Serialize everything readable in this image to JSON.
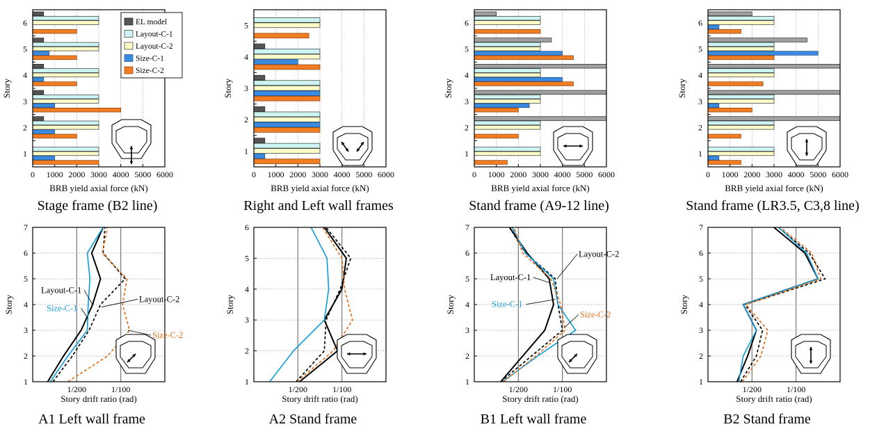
{
  "colors": {
    "el_model": "#555555",
    "el_model_light": "#a0a0a0",
    "layout_c1": "#cdf3f3",
    "layout_c2": "#fbfbc8",
    "size_c1": "#3a8be0",
    "size_c2": "#f07d22",
    "drift_layout_c1": "#000000",
    "drift_layout_c2": "#000000",
    "drift_size_c1": "#1a9ed8",
    "drift_size_c2": "#e0701e"
  },
  "chart_data": [
    {
      "type": "bar",
      "orientation": "horizontal",
      "caption": "Stage frame (B2 line)",
      "xlabel": "BRB yield axial force (kN)",
      "ylabel": "Story",
      "xlim": [
        0,
        6000
      ],
      "xticks": [
        "0",
        "1000",
        "2000",
        "3000",
        "4000",
        "5000",
        "6000"
      ],
      "categories": [
        "1",
        "2",
        "3",
        "4",
        "5",
        "6"
      ],
      "legend": [
        "EL model",
        "Layout-C-1",
        "Layout-C-2",
        "Size-C-1",
        "Size-C-2"
      ],
      "legend_placement": "top-right",
      "icon": "stage-frame-vertical-arrow-icon",
      "series": [
        {
          "name": "EL model",
          "values": [
            0,
            500,
            500,
            500,
            500,
            500
          ]
        },
        {
          "name": "Layout-C-1",
          "values": [
            3000,
            3000,
            3000,
            3000,
            3000,
            3000
          ]
        },
        {
          "name": "Layout-C-2",
          "values": [
            3000,
            3000,
            3000,
            3000,
            3000,
            3000
          ]
        },
        {
          "name": "Size-C-1",
          "values": [
            1000,
            1000,
            1000,
            500,
            750,
            0
          ]
        },
        {
          "name": "Size-C-2",
          "values": [
            3000,
            2000,
            4000,
            2000,
            2000,
            2000
          ]
        }
      ]
    },
    {
      "type": "bar",
      "orientation": "horizontal",
      "caption": "Right and Left wall frames",
      "xlabel": "BRB yield axial force (kN)",
      "ylabel": "Story",
      "xlim": [
        0,
        6000
      ],
      "xticks": [
        "0",
        "1000",
        "2000",
        "3000",
        "4000",
        "5000",
        "6000"
      ],
      "categories": [
        "1",
        "2",
        "3",
        "4",
        "5"
      ],
      "icon": "wall-frames-diagonal-arrows-icon",
      "series": [
        {
          "name": "EL model",
          "values": [
            500,
            500,
            500,
            500,
            0
          ]
        },
        {
          "name": "Layout-C-1",
          "values": [
            3000,
            3000,
            3000,
            3000,
            3000
          ]
        },
        {
          "name": "Layout-C-2",
          "values": [
            3000,
            3000,
            3000,
            3000,
            3000
          ]
        },
        {
          "name": "Size-C-1",
          "values": [
            500,
            3000,
            3000,
            2000,
            0
          ]
        },
        {
          "name": "Size-C-2",
          "values": [
            3000,
            3000,
            3000,
            3000,
            2500
          ]
        }
      ]
    },
    {
      "type": "bar",
      "orientation": "horizontal",
      "caption": "Stand frame (A9-12 line)",
      "xlabel": "BRB yield axial force (kN)",
      "ylabel": "Story",
      "xlim": [
        0,
        6000
      ],
      "xticks": [
        "0",
        "1000",
        "2000",
        "3000",
        "4000",
        "5000",
        "6000"
      ],
      "categories": [
        "1",
        "2",
        "3",
        "4",
        "5",
        "6"
      ],
      "icon": "stand-frame-horizontal-arrow-icon",
      "series": [
        {
          "name": "EL model",
          "values": [
            0,
            6000,
            6000,
            6000,
            3500,
            1000
          ]
        },
        {
          "name": "Layout-C-1",
          "values": [
            3000,
            3000,
            3000,
            3000,
            3000,
            3000
          ]
        },
        {
          "name": "Layout-C-2",
          "values": [
            3000,
            3000,
            3000,
            3000,
            3000,
            3000
          ]
        },
        {
          "name": "Size-C-1",
          "values": [
            0,
            0,
            2500,
            4000,
            4000,
            0
          ]
        },
        {
          "name": "Size-C-2",
          "values": [
            1500,
            2000,
            2000,
            4500,
            4500,
            3000
          ]
        }
      ]
    },
    {
      "type": "bar",
      "orientation": "horizontal",
      "caption": "Stand frame (LR3.5, C3,8 line)",
      "xlabel": "BRB yield axial force (kN)",
      "ylabel": "Story",
      "xlim": [
        0,
        6000
      ],
      "xticks": [
        "0",
        "1000",
        "2000",
        "3000",
        "4000",
        "5000",
        "6000"
      ],
      "categories": [
        "1",
        "2",
        "3",
        "4",
        "5",
        "6"
      ],
      "icon": "stand-frame-vertical-arrow-icon",
      "series": [
        {
          "name": "EL model",
          "values": [
            0,
            6000,
            6000,
            6000,
            4500,
            2000
          ]
        },
        {
          "name": "Layout-C-1",
          "values": [
            3000,
            3000,
            3000,
            3000,
            3000,
            3000
          ]
        },
        {
          "name": "Layout-C-2",
          "values": [
            3000,
            3000,
            3000,
            3000,
            3000,
            3000
          ]
        },
        {
          "name": "Size-C-1",
          "values": [
            500,
            0,
            500,
            0,
            5000,
            500
          ]
        },
        {
          "name": "Size-C-2",
          "values": [
            1500,
            1500,
            2000,
            2500,
            3000,
            1500
          ]
        }
      ]
    },
    {
      "type": "line",
      "caption": "A1 Left wall frame",
      "xlabel": "Story drift ratio (rad)",
      "ylabel": "Story",
      "xlim": [
        0,
        0.015
      ],
      "ylim": [
        1,
        7
      ],
      "xticks": [
        {
          "value": 0.005,
          "label": "1/200"
        },
        {
          "value": 0.01,
          "label": "1/100"
        }
      ],
      "yticks": [
        "1",
        "2",
        "3",
        "4",
        "5",
        "6",
        "7"
      ],
      "icon": "left-wall-diagonal-arrow-icon",
      "series": [
        {
          "name": "Layout-C-1",
          "style": "solid",
          "x": [
            0.0017,
            0.0035,
            0.0055,
            0.0068,
            0.0077,
            0.0067,
            0.008
          ],
          "y": [
            1,
            2,
            3,
            4,
            5,
            6,
            7
          ]
        },
        {
          "name": "Layout-C-2",
          "style": "dashed",
          "x": [
            0.0023,
            0.0045,
            0.0064,
            0.0077,
            0.0105,
            0.008,
            0.0082
          ],
          "y": [
            1,
            2,
            3,
            4,
            5,
            6,
            7
          ]
        },
        {
          "name": "Size-C-1",
          "style": "solid",
          "x": [
            0.002,
            0.004,
            0.0062,
            0.0063,
            0.0065,
            0.0062,
            0.008
          ],
          "y": [
            1,
            2,
            3,
            4,
            5,
            6,
            7
          ]
        },
        {
          "name": "Size-C-2",
          "style": "dashed",
          "x": [
            0.004,
            0.0085,
            0.011,
            0.0102,
            0.0107,
            0.0079,
            0.0085
          ],
          "y": [
            1,
            2,
            3,
            4,
            5,
            6,
            7
          ]
        }
      ],
      "annotations": [
        {
          "text": "Layout-C-1",
          "series": "Layout-C-1"
        },
        {
          "text": "Layout-C-2",
          "series": "Layout-C-2"
        },
        {
          "text": "Size-C-1",
          "series": "Size-C-1"
        },
        {
          "text": "Size-C-2",
          "series": "Size-C-2"
        }
      ]
    },
    {
      "type": "line",
      "caption": "A2 Stand frame",
      "xlabel": "Story drift ratio (rad)",
      "ylabel": "Story",
      "xlim": [
        0,
        0.015
      ],
      "ylim": [
        1,
        6
      ],
      "xticks": [
        {
          "value": 0.005,
          "label": "1/200"
        },
        {
          "value": 0.01,
          "label": "1/100"
        }
      ],
      "yticks": [
        "1",
        "2",
        "3",
        "4",
        "5",
        "6"
      ],
      "icon": "stand-frame-horizontal-arrow-icon",
      "series": [
        {
          "name": "Layout-C-1",
          "style": "solid",
          "x": [
            0.0052,
            0.0095,
            0.008,
            0.01,
            0.0105,
            0.008
          ],
          "y": [
            1,
            2,
            3,
            4,
            5,
            6
          ]
        },
        {
          "name": "Layout-C-2",
          "style": "dashed",
          "x": [
            0.0048,
            0.008,
            0.0082,
            0.0098,
            0.011,
            0.0082
          ],
          "y": [
            1,
            2,
            3,
            4,
            5,
            6
          ]
        },
        {
          "name": "Size-C-1",
          "style": "solid",
          "x": [
            0.0018,
            0.0045,
            0.008,
            0.0085,
            0.0083,
            0.0065
          ],
          "y": [
            1,
            2,
            3,
            4,
            5,
            6
          ]
        },
        {
          "name": "Size-C-2",
          "style": "dashed",
          "x": [
            0.0049,
            0.009,
            0.0112,
            0.0103,
            0.01,
            0.0078
          ],
          "y": [
            1,
            2,
            3,
            4,
            5,
            6
          ]
        }
      ]
    },
    {
      "type": "line",
      "caption": "B1 Left wall frame",
      "xlabel": "Story drift ratio (rad)",
      "ylabel": "Story",
      "xlim": [
        0,
        0.015
      ],
      "ylim": [
        1,
        7
      ],
      "xticks": [
        {
          "value": 0.005,
          "label": "1/200"
        },
        {
          "value": 0.01,
          "label": "1/100"
        }
      ],
      "yticks": [
        "1",
        "2",
        "3",
        "4",
        "5",
        "6",
        "7"
      ],
      "icon": "left-wall-diagonal-arrow-icon",
      "series": [
        {
          "name": "Layout-C-1",
          "style": "solid",
          "x": [
            0.003,
            0.0055,
            0.008,
            0.009,
            0.0085,
            0.006,
            0.004
          ],
          "y": [
            1,
            2,
            3,
            4,
            5,
            6,
            7
          ]
        },
        {
          "name": "Layout-C-2",
          "style": "dashed",
          "x": [
            0.003,
            0.0065,
            0.01,
            0.0095,
            0.0092,
            0.0058,
            0.004
          ],
          "y": [
            1,
            2,
            3,
            4,
            5,
            6,
            7
          ]
        },
        {
          "name": "Size-C-1",
          "style": "solid",
          "x": [
            0.0032,
            0.0072,
            0.0115,
            0.0095,
            0.009,
            0.0058,
            0.0043
          ],
          "y": [
            1,
            2,
            3,
            4,
            5,
            6,
            7
          ]
        },
        {
          "name": "Size-C-2",
          "style": "dashed",
          "x": [
            0.0033,
            0.007,
            0.0103,
            0.0098,
            0.0087,
            0.0055,
            0.0045
          ],
          "y": [
            1,
            2,
            3,
            4,
            5,
            6,
            7
          ]
        }
      ],
      "annotations": [
        {
          "text": "Layout-C-2",
          "series": "Layout-C-2"
        },
        {
          "text": "Layout-C-1",
          "series": "Layout-C-1"
        },
        {
          "text": "Size-C-1",
          "series": "Size-C-1"
        },
        {
          "text": "Size-C-2",
          "series": "Size-C-2"
        }
      ]
    },
    {
      "type": "line",
      "caption": "B2 Stand frame",
      "xlabel": "Story drift ratio (rad)",
      "ylabel": "Story",
      "xlim": [
        0,
        0.015
      ],
      "ylim": [
        1,
        7
      ],
      "xticks": [
        {
          "value": 0.005,
          "label": "1/200"
        },
        {
          "value": 0.01,
          "label": "1/100"
        }
      ],
      "yticks": [
        "1",
        "2",
        "3",
        "4",
        "5",
        "6",
        "7"
      ],
      "icon": "stand-frame-vertical-arrow-icon",
      "series": [
        {
          "name": "Layout-C-1",
          "style": "solid",
          "x": [
            0.0033,
            0.0045,
            0.0055,
            0.004,
            0.0125,
            0.011,
            0.0075
          ],
          "y": [
            1,
            2,
            3,
            4,
            5,
            6,
            7
          ]
        },
        {
          "name": "Layout-C-2",
          "style": "dashed",
          "x": [
            0.0037,
            0.0055,
            0.0062,
            0.0042,
            0.0133,
            0.0115,
            0.008
          ],
          "y": [
            1,
            2,
            3,
            4,
            5,
            6,
            7
          ]
        },
        {
          "name": "Size-C-1",
          "style": "solid",
          "x": [
            0.0035,
            0.004,
            0.0055,
            0.004,
            0.0125,
            0.0112,
            0.008
          ],
          "y": [
            1,
            2,
            3,
            4,
            5,
            6,
            7
          ]
        },
        {
          "name": "Size-C-2",
          "style": "dashed",
          "x": [
            0.0039,
            0.006,
            0.0068,
            0.0043,
            0.0128,
            0.0118,
            0.0082
          ],
          "y": [
            1,
            2,
            3,
            4,
            5,
            6,
            7
          ]
        }
      ]
    }
  ]
}
